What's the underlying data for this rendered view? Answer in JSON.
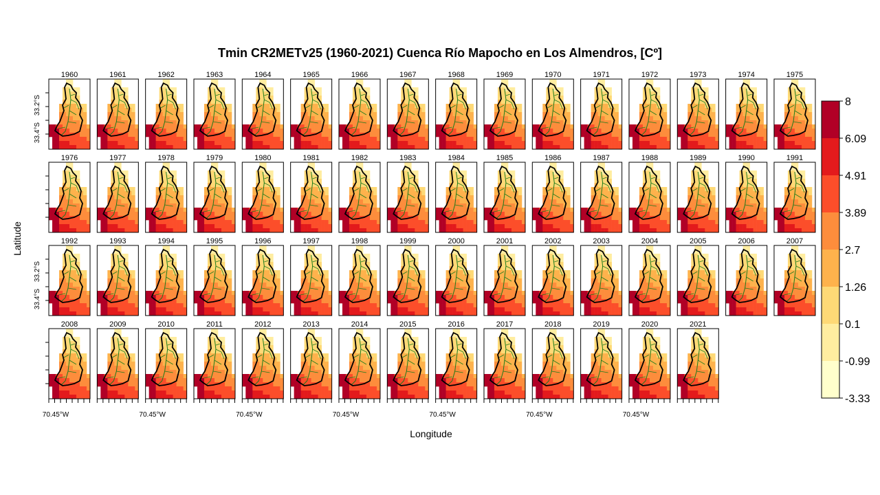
{
  "chart_data": {
    "type": "heatmap",
    "title": "Tmin CR2METv25 (1960-2021) Cuenca Río Mapocho en Los Almendros, [Cº]",
    "xlabel": "Longitude",
    "ylabel": "Latitude",
    "panels": [
      "1960",
      "1961",
      "1962",
      "1963",
      "1964",
      "1965",
      "1966",
      "1967",
      "1968",
      "1969",
      "1970",
      "1971",
      "1972",
      "1973",
      "1974",
      "1975",
      "1976",
      "1977",
      "1978",
      "1979",
      "1980",
      "1981",
      "1982",
      "1983",
      "1984",
      "1985",
      "1986",
      "1987",
      "1988",
      "1989",
      "1990",
      "1991",
      "1992",
      "1993",
      "1994",
      "1995",
      "1996",
      "1997",
      "1998",
      "1999",
      "2000",
      "2001",
      "2002",
      "2003",
      "2004",
      "2005",
      "2006",
      "2007",
      "2008",
      "2009",
      "2010",
      "2011",
      "2012",
      "2013",
      "2014",
      "2015",
      "2016",
      "2017",
      "2018",
      "2019",
      "2020",
      "2021"
    ],
    "x_tick_label": "70.45°W",
    "y_tick_labels": [
      "33.4°S",
      "33.2°S"
    ],
    "legend": {
      "position": "right",
      "breaks": [
        "8",
        "6.09",
        "4.91",
        "3.89",
        "2.7",
        "1.26",
        "0.1",
        "-0.99",
        "-3.33"
      ],
      "colors": [
        "#b10026",
        "#e31a1c",
        "#fc4e2a",
        "#fd8d3c",
        "#feb24c",
        "#fed976",
        "#ffeda0",
        "#ffffcc"
      ]
    },
    "overlays": [
      "basin boundary",
      "river network"
    ],
    "grid": false
  }
}
